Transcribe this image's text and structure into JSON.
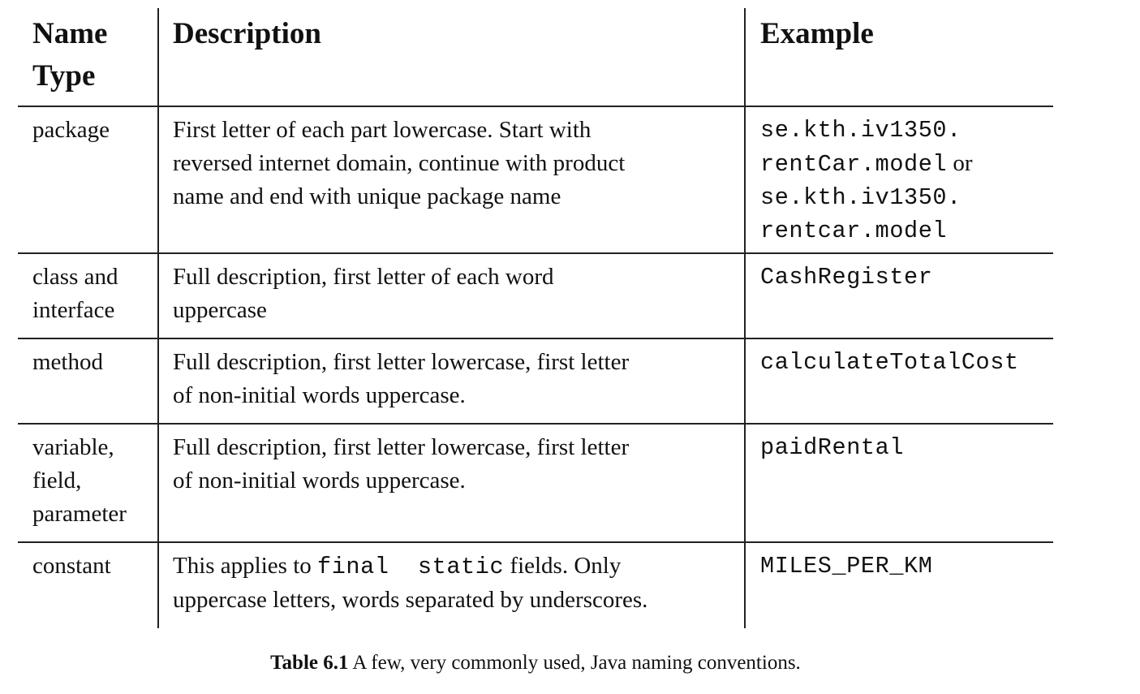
{
  "header": {
    "col1": [
      "Name",
      "Type"
    ],
    "col2": "Description",
    "col3": "Example"
  },
  "rows": [
    {
      "type": [
        "package"
      ],
      "description": [
        "First letter of each part lowercase. Start with",
        "reversed internet domain, continue with product",
        "name and end with unique package name"
      ],
      "example_lines": [
        "se.kth.iv1350.",
        "rentCar.model",
        "se.kth.iv1350.",
        "rentcar.model"
      ],
      "example_connector": "or"
    },
    {
      "type": [
        "class and",
        "interface"
      ],
      "description": [
        "Full description, first letter of each word",
        "uppercase"
      ],
      "example_lines": [
        "CashRegister"
      ]
    },
    {
      "type": [
        "method"
      ],
      "description": [
        "Full description, first letter lowercase, first letter",
        "of non-initial words uppercase."
      ],
      "example_lines": [
        "calculateTotalCost"
      ]
    },
    {
      "type": [
        "variable,",
        "field,",
        "parameter"
      ],
      "description": [
        "Full description, first letter lowercase, first letter",
        "of non-initial words uppercase."
      ],
      "example_lines": [
        "paidRental"
      ]
    },
    {
      "type": [
        "constant"
      ],
      "description_prefix": "This applies to",
      "description_code": "final  static",
      "description_suffix": "fields. Only",
      "description_line2": "uppercase letters, words separated by underscores.",
      "example_lines": [
        "MILES_PER_KM"
      ]
    }
  ],
  "caption": {
    "label": "Table 6.1",
    "text": " A few, very commonly used, Java naming conventions."
  }
}
